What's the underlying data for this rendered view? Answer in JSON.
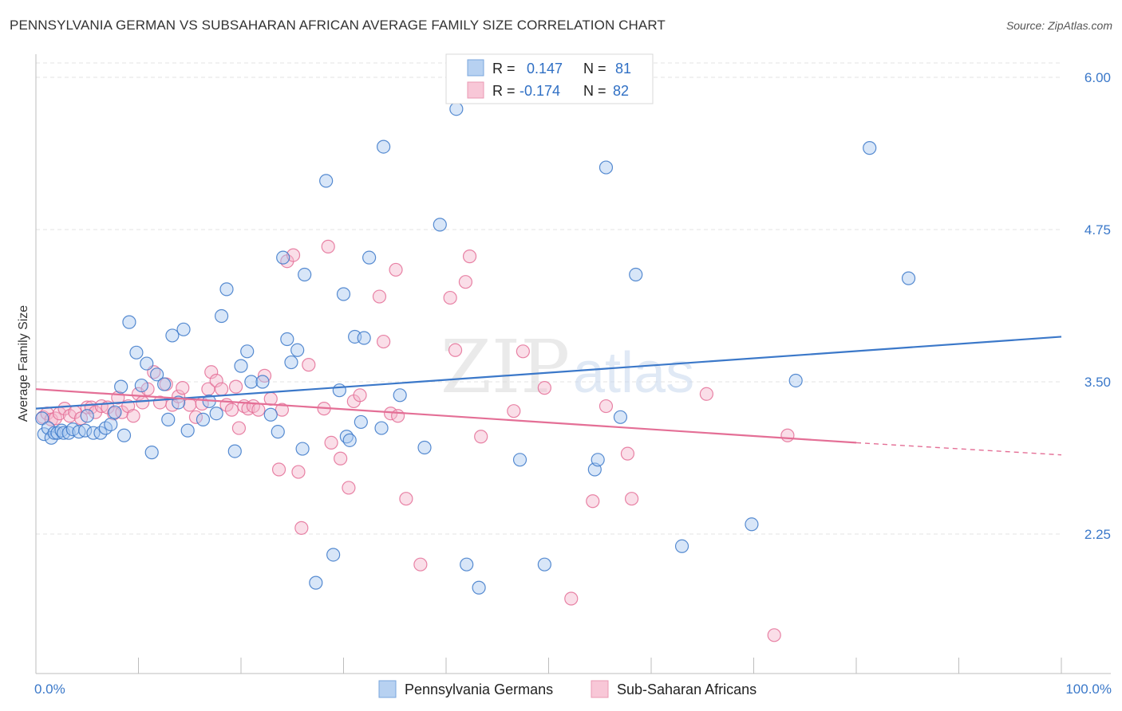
{
  "title": "PENNSYLVANIA GERMAN VS SUBSAHARAN AFRICAN AVERAGE FAMILY SIZE CORRELATION CHART",
  "source": "Source: ZipAtlas.com",
  "watermark": {
    "part1": "ZIP",
    "part2": "atlas"
  },
  "colors": {
    "blue": "#3b78c9",
    "blue_fill": "#a9c8ef",
    "pink": "#e46f96",
    "pink_fill": "#f5b6cb",
    "grid": "#e3e3e3"
  },
  "legend": {
    "rows": [
      {
        "r_label": "R =",
        "r_value": "0.147",
        "n_label": "N =",
        "n_value": "81"
      },
      {
        "r_label": "R =",
        "r_value": "-0.174",
        "n_label": "N =",
        "n_value": "82"
      }
    ]
  },
  "bottom_legend": [
    "Pennsylvania Germans",
    "Sub-Saharan Africans"
  ],
  "chart_data": {
    "type": "scatter",
    "title": "PENNSYLVANIA GERMAN VS SUBSAHARAN AFRICAN AVERAGE FAMILY SIZE CORRELATION CHART",
    "xlabel": "",
    "ylabel": "Average Family Size",
    "xlim": [
      0,
      100
    ],
    "ylim": [
      1.3,
      6.1
    ],
    "x_tick_labels": [
      "0.0%",
      "100.0%"
    ],
    "y_ticks": [
      2.25,
      3.5,
      4.75,
      6.0
    ],
    "y_tick_labels": [
      "2.25",
      "3.50",
      "4.75",
      "6.00"
    ],
    "grid": "horizontal dashed",
    "legend_position": "top-center",
    "series": [
      {
        "name": "Pennsylvania Germans",
        "trend": {
          "x": [
            0,
            100
          ],
          "y": [
            3.28,
            3.87
          ]
        },
        "points": [
          [
            0.6,
            3.2
          ],
          [
            0.8,
            3.07
          ],
          [
            1.2,
            3.12
          ],
          [
            1.5,
            3.04
          ],
          [
            1.8,
            3.08
          ],
          [
            2.1,
            3.08
          ],
          [
            2.5,
            3.1
          ],
          [
            2.7,
            3.08
          ],
          [
            3.2,
            3.08
          ],
          [
            3.6,
            3.11
          ],
          [
            4.2,
            3.09
          ],
          [
            4.8,
            3.1
          ],
          [
            5.0,
            3.22
          ],
          [
            5.6,
            3.08
          ],
          [
            6.3,
            3.08
          ],
          [
            6.8,
            3.12
          ],
          [
            7.3,
            3.15
          ],
          [
            7.7,
            3.25
          ],
          [
            8.3,
            3.46
          ],
          [
            8.6,
            3.06
          ],
          [
            9.1,
            3.99
          ],
          [
            9.8,
            3.74
          ],
          [
            10.3,
            3.47
          ],
          [
            10.8,
            3.65
          ],
          [
            11.3,
            2.92
          ],
          [
            11.8,
            3.56
          ],
          [
            12.5,
            3.48
          ],
          [
            12.9,
            3.19
          ],
          [
            13.3,
            3.88
          ],
          [
            13.9,
            3.33
          ],
          [
            14.4,
            3.93
          ],
          [
            14.8,
            3.1
          ],
          [
            16.3,
            3.19
          ],
          [
            16.9,
            3.34
          ],
          [
            17.6,
            3.24
          ],
          [
            18.1,
            4.04
          ],
          [
            18.6,
            4.26
          ],
          [
            19.4,
            2.93
          ],
          [
            20.0,
            3.63
          ],
          [
            20.6,
            3.75
          ],
          [
            21.0,
            3.5
          ],
          [
            22.1,
            3.5
          ],
          [
            22.9,
            3.23
          ],
          [
            23.6,
            3.09
          ],
          [
            24.1,
            4.52
          ],
          [
            24.5,
            3.85
          ],
          [
            24.9,
            3.66
          ],
          [
            25.5,
            3.76
          ],
          [
            26.0,
            2.95
          ],
          [
            26.2,
            4.38
          ],
          [
            27.3,
            1.85
          ],
          [
            28.3,
            5.15
          ],
          [
            29.0,
            2.08
          ],
          [
            29.6,
            3.43
          ],
          [
            30.0,
            4.22
          ],
          [
            30.3,
            3.05
          ],
          [
            30.6,
            3.02
          ],
          [
            31.1,
            3.87
          ],
          [
            31.7,
            3.17
          ],
          [
            32.0,
            3.86
          ],
          [
            32.5,
            4.52
          ],
          [
            33.7,
            3.12
          ],
          [
            33.9,
            5.43
          ],
          [
            35.5,
            3.39
          ],
          [
            37.9,
            2.96
          ],
          [
            39.4,
            4.79
          ],
          [
            41.0,
            5.74
          ],
          [
            42.0,
            2.0
          ],
          [
            43.2,
            1.81
          ],
          [
            47.2,
            2.86
          ],
          [
            49.6,
            2.0
          ],
          [
            54.5,
            2.78
          ],
          [
            54.8,
            2.86
          ],
          [
            55.6,
            5.26
          ],
          [
            57.0,
            3.21
          ],
          [
            58.5,
            4.38
          ],
          [
            63.0,
            2.15
          ],
          [
            69.8,
            2.33
          ],
          [
            74.1,
            3.51
          ],
          [
            81.3,
            5.42
          ],
          [
            85.1,
            4.35
          ]
        ]
      },
      {
        "name": "Sub-Saharan Africans",
        "trend": {
          "x": [
            0,
            80
          ],
          "y": [
            3.44,
            3.0
          ],
          "dashed_to": {
            "x": 100,
            "y": 2.9
          }
        },
        "points": [
          [
            0.7,
            3.21
          ],
          [
            1.1,
            3.24
          ],
          [
            1.5,
            3.19
          ],
          [
            1.9,
            3.2
          ],
          [
            2.3,
            3.24
          ],
          [
            2.8,
            3.28
          ],
          [
            3.3,
            3.22
          ],
          [
            3.8,
            3.25
          ],
          [
            4.4,
            3.2
          ],
          [
            5.0,
            3.29
          ],
          [
            5.4,
            3.29
          ],
          [
            5.8,
            3.25
          ],
          [
            6.4,
            3.3
          ],
          [
            7.0,
            3.29
          ],
          [
            7.6,
            3.24
          ],
          [
            8.0,
            3.37
          ],
          [
            8.4,
            3.25
          ],
          [
            9.0,
            3.3
          ],
          [
            9.5,
            3.22
          ],
          [
            10.0,
            3.4
          ],
          [
            10.4,
            3.33
          ],
          [
            10.9,
            3.44
          ],
          [
            11.5,
            3.58
          ],
          [
            12.1,
            3.33
          ],
          [
            12.7,
            3.48
          ],
          [
            13.3,
            3.31
          ],
          [
            13.9,
            3.38
          ],
          [
            14.3,
            3.45
          ],
          [
            15.0,
            3.31
          ],
          [
            15.6,
            3.21
          ],
          [
            16.2,
            3.32
          ],
          [
            16.8,
            3.44
          ],
          [
            17.1,
            3.58
          ],
          [
            17.6,
            3.51
          ],
          [
            18.1,
            3.44
          ],
          [
            18.6,
            3.31
          ],
          [
            19.1,
            3.27
          ],
          [
            19.5,
            3.46
          ],
          [
            19.8,
            3.12
          ],
          [
            20.3,
            3.3
          ],
          [
            20.7,
            3.28
          ],
          [
            21.2,
            3.3
          ],
          [
            21.7,
            3.27
          ],
          [
            22.3,
            3.55
          ],
          [
            22.9,
            3.36
          ],
          [
            23.7,
            2.78
          ],
          [
            24.0,
            3.27
          ],
          [
            24.5,
            4.49
          ],
          [
            25.1,
            4.54
          ],
          [
            25.6,
            2.76
          ],
          [
            25.9,
            2.3
          ],
          [
            26.6,
            3.64
          ],
          [
            28.1,
            3.28
          ],
          [
            28.5,
            4.61
          ],
          [
            28.8,
            3.0
          ],
          [
            29.7,
            2.87
          ],
          [
            30.5,
            2.63
          ],
          [
            31.0,
            3.34
          ],
          [
            31.6,
            3.39
          ],
          [
            33.5,
            4.2
          ],
          [
            33.9,
            3.83
          ],
          [
            34.6,
            3.24
          ],
          [
            35.1,
            4.42
          ],
          [
            35.3,
            3.22
          ],
          [
            36.1,
            2.54
          ],
          [
            37.5,
            2.0
          ],
          [
            40.4,
            4.19
          ],
          [
            40.9,
            3.76
          ],
          [
            41.9,
            4.32
          ],
          [
            42.3,
            4.53
          ],
          [
            43.4,
            3.05
          ],
          [
            46.6,
            3.26
          ],
          [
            47.5,
            3.75
          ],
          [
            49.6,
            3.45
          ],
          [
            52.2,
            1.72
          ],
          [
            54.3,
            2.52
          ],
          [
            55.6,
            3.3
          ],
          [
            57.7,
            2.91
          ],
          [
            58.1,
            2.54
          ],
          [
            65.4,
            3.4
          ],
          [
            73.3,
            3.06
          ],
          [
            72.0,
            1.42
          ]
        ]
      }
    ]
  }
}
